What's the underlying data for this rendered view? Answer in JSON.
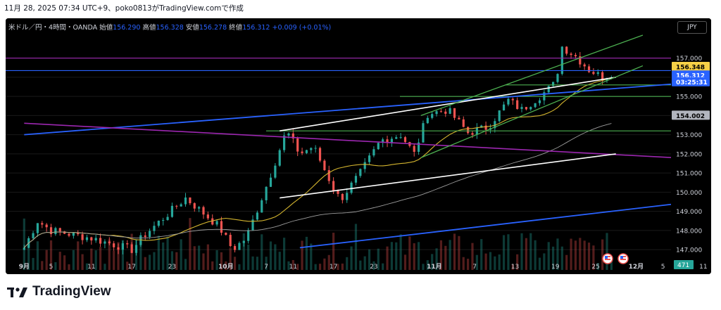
{
  "header": {
    "caption": "11月 28, 2025 07:34 UTC+9、poko0813がTradingView.comで作成"
  },
  "legend": {
    "symbol": "米ドル／円・4時間・OANDA",
    "open_label": "始値",
    "open": "156.290",
    "high_label": "高値",
    "high": "156.328",
    "low_label": "安値",
    "low": "156.278",
    "close_label": "終値",
    "close": "156.312",
    "change": "+0.009 (+0.01%)"
  },
  "currency_button": "JPY",
  "brand": {
    "name": "TradingView"
  },
  "colors": {
    "background": "#000000",
    "up": "#26a69a",
    "down": "#ef5350",
    "ma_fast": "#d4b52f",
    "ma_slow": "#9e9e9e",
    "trend_blue": "#2962ff",
    "trend_purple": "#9c27b0",
    "channel_green": "#4caf50",
    "channel_white": "#ffffff"
  },
  "chart_data": {
    "type": "candlestick",
    "timeframe": "4時間",
    "ylim": [
      146.6,
      158.2
    ],
    "y_ticks": [
      "157.000",
      "156.000",
      "155.000",
      "154.000",
      "153.000",
      "152.000",
      "151.000",
      "150.000",
      "149.000",
      "148.000",
      "147.000"
    ],
    "x_ticks": [
      "9月",
      "5",
      "11",
      "17",
      "23",
      "10月",
      "7",
      "11",
      "17",
      "23",
      "11月",
      "7",
      "13",
      "19",
      "25",
      "12月",
      "5",
      "11"
    ],
    "price_labels": [
      {
        "value": "156.348",
        "style": "yellow"
      },
      {
        "value": "156.312",
        "style": "blue"
      },
      {
        "value": "03:25:31",
        "style": "blue"
      },
      {
        "value": "154.002",
        "style": "gray"
      }
    ],
    "volume_label": "471",
    "event_icons": [
      "us-flag-icon",
      "us-flag-icon"
    ],
    "key_points": [
      {
        "date": "9月1",
        "close": 147.1
      },
      {
        "date": "9月3",
        "close": 148.5
      },
      {
        "date": "9月5",
        "close": 148.0
      },
      {
        "date": "9月11",
        "close": 147.6
      },
      {
        "date": "9月17",
        "close": 147.0
      },
      {
        "date": "9月19",
        "close": 147.8
      },
      {
        "date": "9月25",
        "close": 149.7
      },
      {
        "date": "9月30",
        "close": 148.2
      },
      {
        "date": "10月2",
        "close": 147.0
      },
      {
        "date": "10月4",
        "close": 147.6
      },
      {
        "date": "10月7",
        "close": 150.3
      },
      {
        "date": "10月10",
        "close": 153.2
      },
      {
        "date": "10月12",
        "close": 152.0
      },
      {
        "date": "10月14",
        "close": 152.4
      },
      {
        "date": "10月17",
        "close": 150.2
      },
      {
        "date": "10月18",
        "close": 149.6
      },
      {
        "date": "10月21",
        "close": 151.0
      },
      {
        "date": "10月24",
        "close": 152.7
      },
      {
        "date": "10月27",
        "close": 153.0
      },
      {
        "date": "10月29",
        "close": 152.0
      },
      {
        "date": "10月31",
        "close": 154.1
      },
      {
        "date": "11月3",
        "close": 154.3
      },
      {
        "date": "11月6",
        "close": 153.1
      },
      {
        "date": "11月9",
        "close": 153.4
      },
      {
        "date": "11月12",
        "close": 154.8
      },
      {
        "date": "11月14",
        "close": 154.3
      },
      {
        "date": "11月17",
        "close": 155.1
      },
      {
        "date": "11月19",
        "close": 155.7
      },
      {
        "date": "11月20",
        "close": 157.6
      },
      {
        "date": "11月22",
        "close": 157.1
      },
      {
        "date": "11月24",
        "close": 156.4
      },
      {
        "date": "11月26",
        "close": 156.0
      },
      {
        "date": "11月28",
        "close": 156.312
      }
    ],
    "horizontal_levels": [
      157.0,
      156.348,
      155.6,
      155.0,
      153.2
    ]
  }
}
